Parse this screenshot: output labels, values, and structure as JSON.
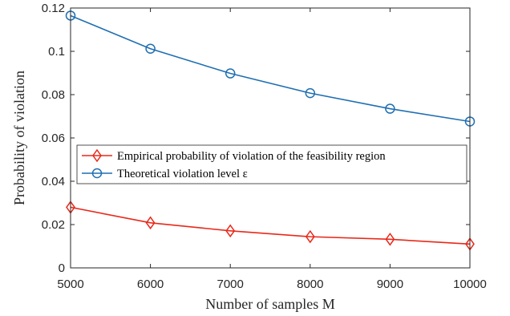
{
  "chart_data": {
    "type": "line",
    "xlabel": "Number of samples M",
    "ylabel": "Probability of violation",
    "x": [
      5000,
      6000,
      7000,
      8000,
      9000,
      10000
    ],
    "xlim": [
      5000,
      10000
    ],
    "ylim": [
      0,
      0.12
    ],
    "xticks": [
      "5000",
      "6000",
      "7000",
      "8000",
      "9000",
      "10000"
    ],
    "yticks": [
      "0",
      "0.02",
      "0.04",
      "0.06",
      "0.08",
      "0.1",
      "0.12"
    ],
    "grid": false,
    "legend_position": "middle-left",
    "series": [
      {
        "name": "Empirical probability of violation of the feasibility region",
        "values": [
          0.028,
          0.0208,
          0.0171,
          0.0144,
          0.0132,
          0.011
        ],
        "color": "#e8291b",
        "marker": "diamond"
      },
      {
        "name": "Theoretical violation level ε",
        "values": [
          0.1165,
          0.1012,
          0.0898,
          0.0807,
          0.0735,
          0.0676
        ],
        "color": "#1f6fb2",
        "marker": "circle"
      }
    ]
  }
}
